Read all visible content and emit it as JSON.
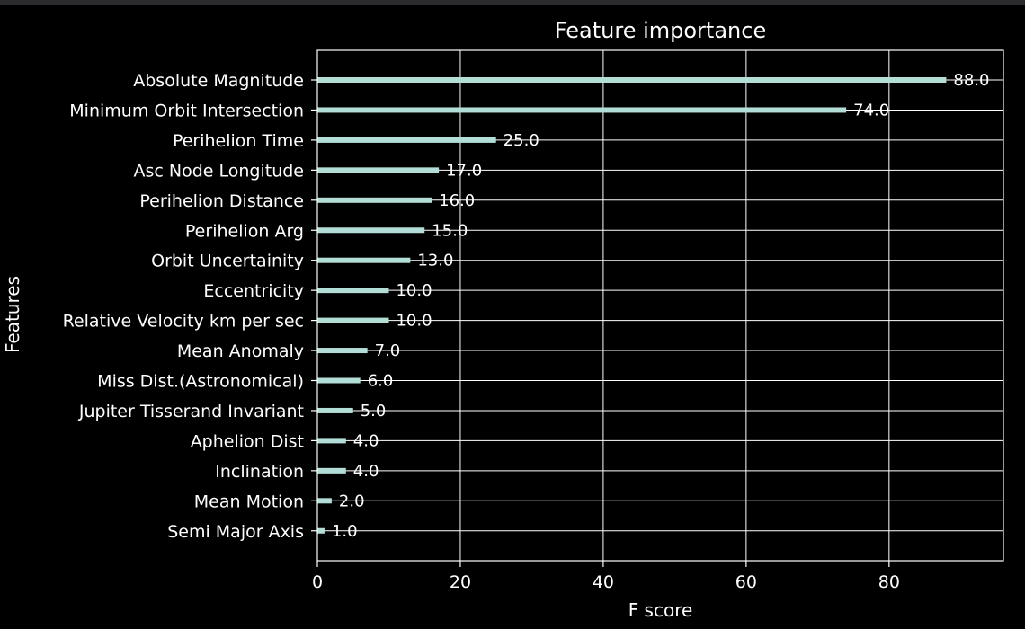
{
  "chart_data": {
    "type": "bar",
    "orientation": "horizontal",
    "title": "Feature importance",
    "xlabel": "F score",
    "ylabel": "Features",
    "xlim": [
      0,
      96
    ],
    "xticks": [
      0,
      20,
      40,
      60,
      80
    ],
    "grid": true,
    "categories": [
      "Absolute Magnitude",
      "Minimum Orbit Intersection",
      "Perihelion Time",
      "Asc Node Longitude",
      "Perihelion Distance",
      "Perihelion Arg",
      "Orbit Uncertainity",
      "Eccentricity",
      "Relative Velocity km per sec",
      "Mean Anomaly",
      "Miss Dist.(Astronomical)",
      "Jupiter Tisserand Invariant",
      "Aphelion Dist",
      "Inclination",
      "Mean Motion",
      "Semi Major Axis"
    ],
    "values": [
      88.0,
      74.0,
      25.0,
      17.0,
      16.0,
      15.0,
      13.0,
      10.0,
      10.0,
      7.0,
      6.0,
      5.0,
      4.0,
      4.0,
      2.0,
      1.0
    ],
    "value_labels": [
      "88.0",
      "74.0",
      "25.0",
      "17.0",
      "16.0",
      "15.0",
      "13.0",
      "10.0",
      "10.0",
      "7.0",
      "6.0",
      "5.0",
      "4.0",
      "4.0",
      "2.0",
      "1.0"
    ],
    "colors": {
      "background": "#000000",
      "bar": "#b3ded8",
      "grid": "#ffffff",
      "text": "#ffffff"
    }
  }
}
